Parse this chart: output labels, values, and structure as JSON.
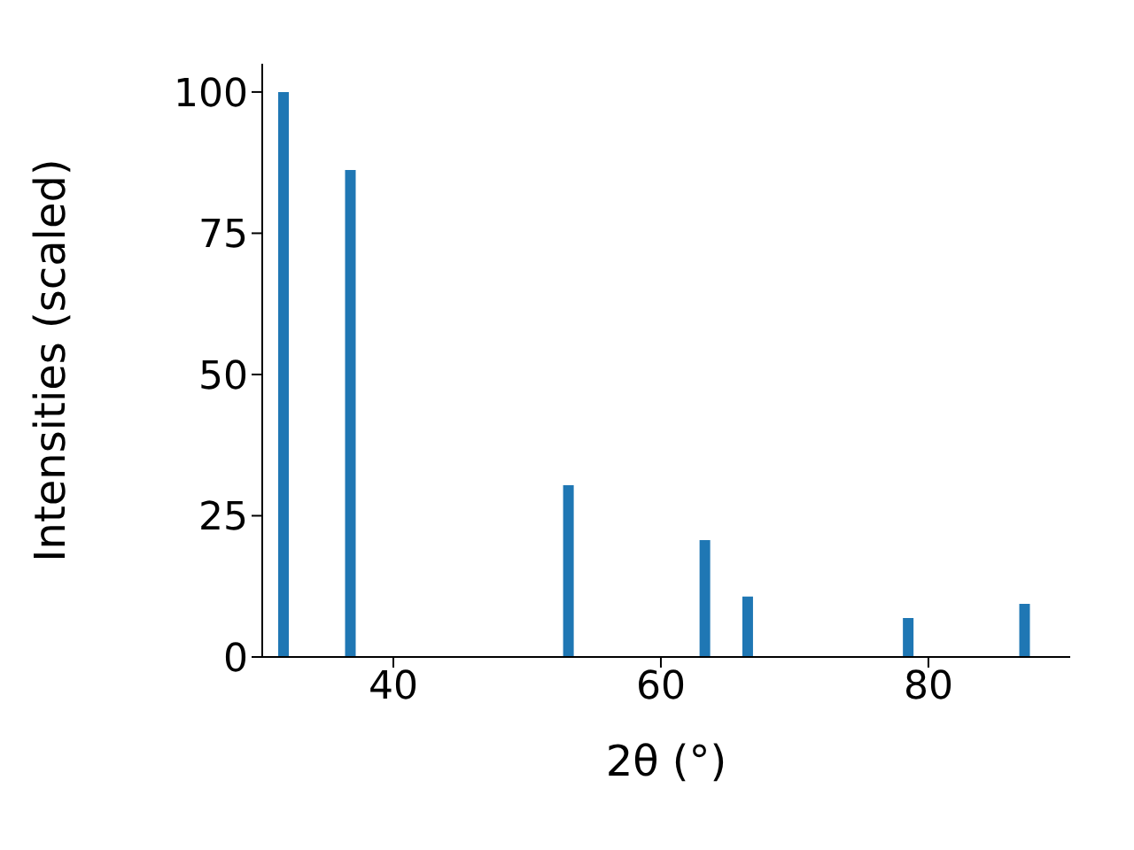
{
  "chart_data": {
    "type": "bar",
    "xlabel": "2θ (°)",
    "ylabel": "Intensities (scaled)",
    "x": [
      31.8,
      36.8,
      53.1,
      63.3,
      66.5,
      78.5,
      87.2
    ],
    "values": [
      100,
      86.2,
      30.4,
      20.7,
      10.7,
      6.9,
      9.4
    ],
    "color": "#1f77b4",
    "xlim": [
      30.2,
      90.6
    ],
    "xticks": [
      40,
      60,
      80
    ],
    "ylim": [
      0,
      105
    ],
    "yticks": [
      0,
      25,
      50,
      75,
      100
    ],
    "grid": false
  }
}
